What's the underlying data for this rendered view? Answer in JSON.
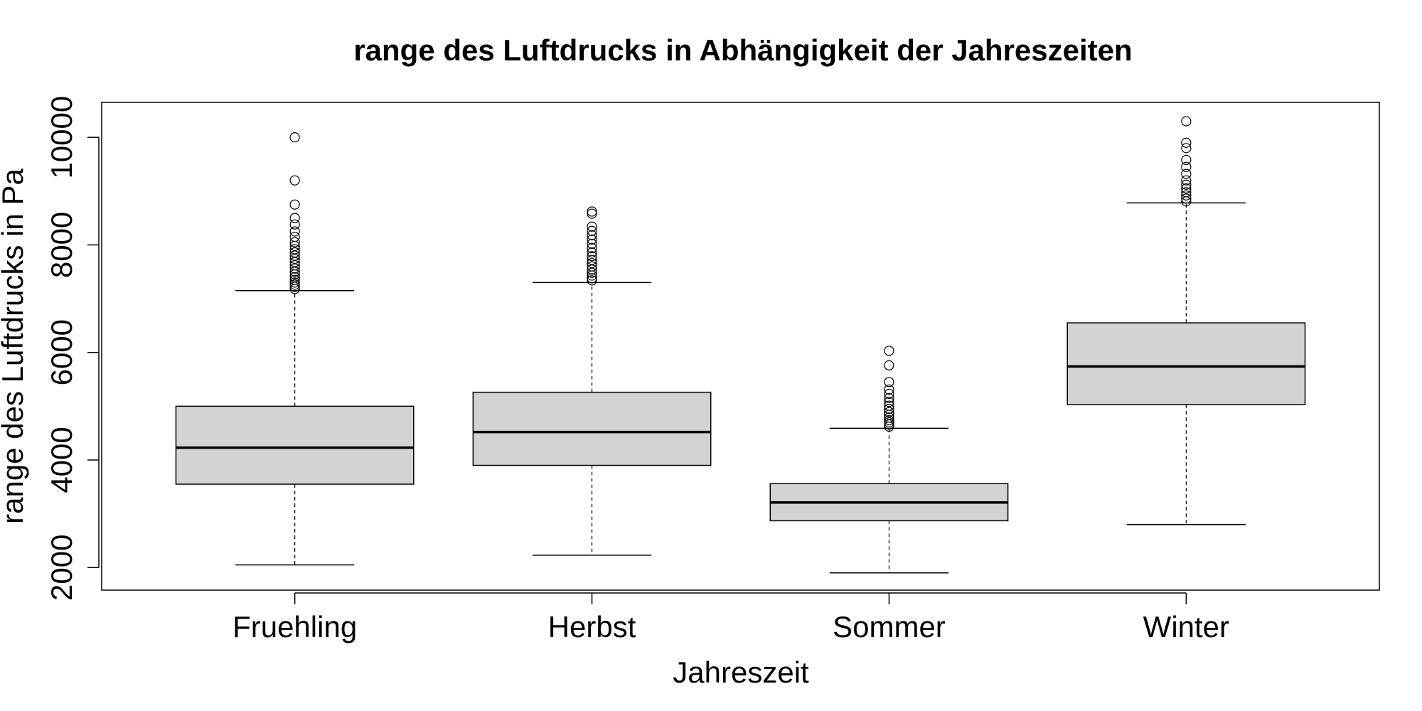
{
  "chart_data": {
    "type": "boxplot",
    "title": "range des Luftdrucks in Abhängigkeit der Jahreszeiten",
    "xlabel": "Jahreszeit",
    "ylabel": "range des Luftdrucks in Pa",
    "ylim": [
      1580,
      10650
    ],
    "yticks": [
      2000,
      4000,
      6000,
      8000,
      10000
    ],
    "categories": [
      "Fruehling",
      "Herbst",
      "Sommer",
      "Winter"
    ],
    "boxes": [
      {
        "name": "Fruehling",
        "whisker_low": 2050,
        "q1": 3550,
        "median": 4230,
        "q3": 5000,
        "whisker_high": 7150,
        "outliers": [
          7180,
          7220,
          7260,
          7300,
          7350,
          7400,
          7450,
          7500,
          7560,
          7620,
          7680,
          7740,
          7800,
          7860,
          7920,
          7980,
          8050,
          8150,
          8250,
          8380,
          8500,
          8750,
          9200,
          10000
        ]
      },
      {
        "name": "Herbst",
        "whisker_low": 2230,
        "q1": 3900,
        "median": 4520,
        "q3": 5260,
        "whisker_high": 7300,
        "outliers": [
          7340,
          7380,
          7430,
          7480,
          7540,
          7600,
          7660,
          7720,
          7790,
          7860,
          7940,
          8020,
          8100,
          8180,
          8260,
          8340,
          8580,
          8620
        ]
      },
      {
        "name": "Sommer",
        "whisker_low": 1900,
        "q1": 2870,
        "median": 3210,
        "q3": 3560,
        "whisker_high": 4590,
        "outliers": [
          4620,
          4660,
          4700,
          4740,
          4790,
          4840,
          4890,
          4950,
          5010,
          5080,
          5150,
          5230,
          5310,
          5450,
          5760,
          6030
        ]
      },
      {
        "name": "Winter",
        "whisker_low": 2800,
        "q1": 5030,
        "median": 5740,
        "q3": 6550,
        "whisker_high": 8780,
        "outliers": [
          8810,
          8860,
          8920,
          8980,
          9050,
          9120,
          9200,
          9320,
          9450,
          9580,
          9800,
          9900,
          10300
        ]
      }
    ],
    "colors": {
      "box_fill": "#d3d3d3",
      "line": "#000000",
      "background": "#ffffff"
    }
  }
}
